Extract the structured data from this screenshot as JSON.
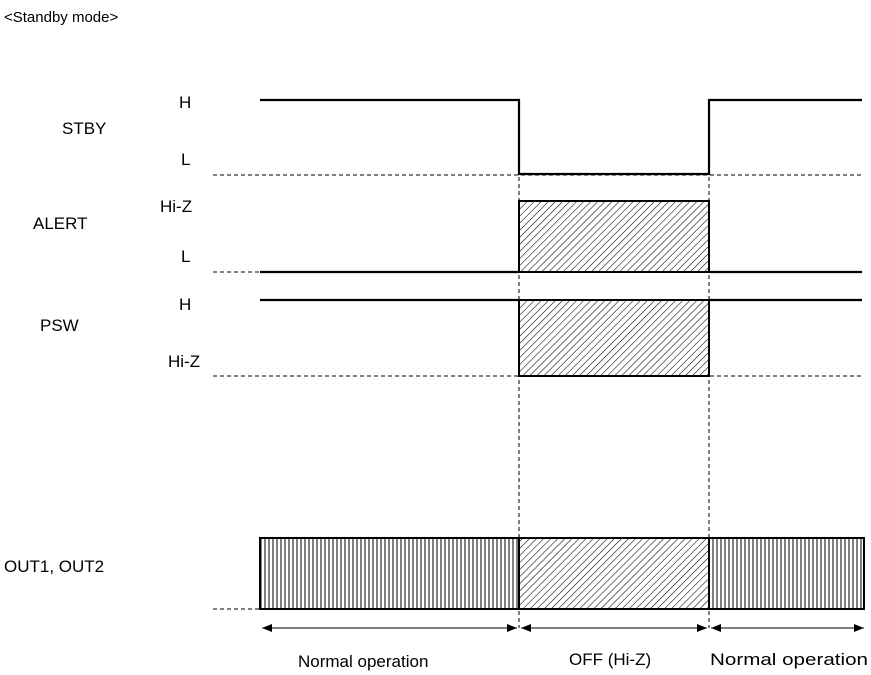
{
  "title": "<Standby mode>",
  "signals": {
    "stby": {
      "name": "STBY",
      "high_label": "H",
      "low_label": "L"
    },
    "alert": {
      "name": "ALERT",
      "high_label": "Hi-Z",
      "low_label": "L"
    },
    "psw": {
      "name": "PSW",
      "high_label": "H",
      "low_label": "Hi-Z"
    },
    "out": {
      "name": "OUT1, OUT2"
    }
  },
  "periods": {
    "first": "Normal operation",
    "middle": "OFF (Hi-Z)",
    "last": "Normal operation"
  }
}
